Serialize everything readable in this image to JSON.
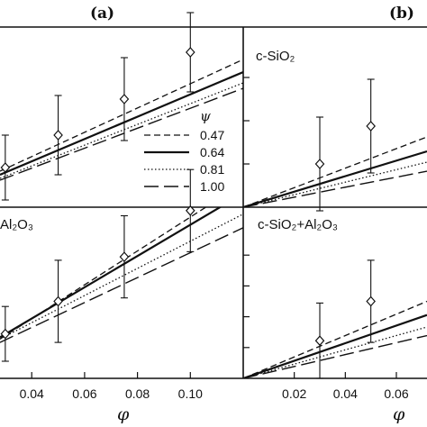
{
  "figure": {
    "panel_labels": [
      "(a)",
      "(b)"
    ],
    "legend_title": "ψ",
    "styles": {
      "0.47": {
        "dash": "7,4",
        "width": 1.3
      },
      "0.64": {
        "dash": "",
        "width": 2.2
      },
      "0.81": {
        "dash": "1.5,2.5",
        "width": 1.3
      },
      "1.00": {
        "dash": "16,6",
        "width": 1.4
      }
    }
  },
  "chart_data": [
    {
      "id": "a-top",
      "type": "line",
      "panel": "(a)",
      "label": "",
      "xlim": [
        0.028,
        0.12
      ],
      "ylim": [
        0,
        1
      ],
      "x_ticks": [],
      "points": [
        {
          "x": 0.03,
          "y": 0.22,
          "err": 0.18
        },
        {
          "x": 0.05,
          "y": 0.4,
          "err": 0.22
        },
        {
          "x": 0.075,
          "y": 0.6,
          "err": 0.23
        },
        {
          "x": 0.1,
          "y": 0.86,
          "err": 0.22
        }
      ],
      "series": [
        {
          "name": "0.47",
          "x": [
            0.028,
            0.12
          ],
          "y": [
            0.2,
            0.82
          ]
        },
        {
          "name": "0.64",
          "x": [
            0.028,
            0.12
          ],
          "y": [
            0.18,
            0.75
          ]
        },
        {
          "name": "0.81",
          "x": [
            0.028,
            0.12
          ],
          "y": [
            0.16,
            0.69
          ]
        },
        {
          "name": "1.00",
          "x": [
            0.028,
            0.12
          ],
          "y": [
            0.15,
            0.66
          ]
        }
      ]
    },
    {
      "id": "a-bottom",
      "type": "line",
      "panel": "(a)",
      "label": "Al₂O₃",
      "xlim": [
        0.028,
        0.12
      ],
      "ylim": [
        0,
        1
      ],
      "x_ticks": [
        0.04,
        0.06,
        0.08,
        0.1
      ],
      "points": [
        {
          "x": 0.03,
          "y": 0.26,
          "err": 0.16
        },
        {
          "x": 0.05,
          "y": 0.45,
          "err": 0.24
        },
        {
          "x": 0.075,
          "y": 0.71,
          "err": 0.24
        },
        {
          "x": 0.1,
          "y": 0.98,
          "err": 0.24
        }
      ],
      "series": [
        {
          "name": "0.47",
          "x": [
            0.028,
            0.12
          ],
          "y": [
            0.23,
            1.14
          ]
        },
        {
          "name": "0.64",
          "x": [
            0.028,
            0.12
          ],
          "y": [
            0.24,
            1.08
          ]
        },
        {
          "name": "0.81",
          "x": [
            0.028,
            0.12
          ],
          "y": [
            0.23,
            0.96
          ]
        },
        {
          "name": "1.00",
          "x": [
            0.028,
            0.12
          ],
          "y": [
            0.21,
            0.88
          ]
        }
      ]
    },
    {
      "id": "b-top",
      "type": "line",
      "panel": "(b)",
      "label": "c-SiO₂",
      "xlim": [
        0,
        0.072
      ],
      "ylim": [
        0,
        1
      ],
      "x_ticks": [],
      "points": [
        {
          "x": 0.03,
          "y": 0.24,
          "err": 0.26
        },
        {
          "x": 0.05,
          "y": 0.45,
          "err": 0.26
        }
      ],
      "series": [
        {
          "name": "0.47",
          "x": [
            0,
            0.072
          ],
          "y": [
            0,
            0.39
          ]
        },
        {
          "name": "0.64",
          "x": [
            0,
            0.072
          ],
          "y": [
            0,
            0.31
          ]
        },
        {
          "name": "0.81",
          "x": [
            0,
            0.072
          ],
          "y": [
            0,
            0.25
          ]
        },
        {
          "name": "1.00",
          "x": [
            0,
            0.072
          ],
          "y": [
            0,
            0.2
          ]
        }
      ]
    },
    {
      "id": "b-bottom",
      "type": "line",
      "panel": "(b)",
      "label": "c-SiO₂+Al₂O₃",
      "xlim": [
        0,
        0.072
      ],
      "ylim": [
        0,
        1
      ],
      "x_ticks": [
        0.02,
        0.04,
        0.06
      ],
      "points": [
        {
          "x": 0.03,
          "y": 0.22,
          "err": 0.22
        },
        {
          "x": 0.05,
          "y": 0.45,
          "err": 0.24
        }
      ],
      "series": [
        {
          "name": "0.47",
          "x": [
            0,
            0.072
          ],
          "y": [
            0,
            0.45
          ]
        },
        {
          "name": "0.64",
          "x": [
            0,
            0.072
          ],
          "y": [
            0,
            0.37
          ]
        },
        {
          "name": "0.81",
          "x": [
            0,
            0.072
          ],
          "y": [
            0,
            0.3
          ]
        },
        {
          "name": "1.00",
          "x": [
            0,
            0.072
          ],
          "y": [
            0,
            0.25
          ]
        }
      ]
    }
  ],
  "axes": {
    "x_title": "φ"
  },
  "legend": [
    "0.47",
    "0.64",
    "0.81",
    "1.00"
  ]
}
